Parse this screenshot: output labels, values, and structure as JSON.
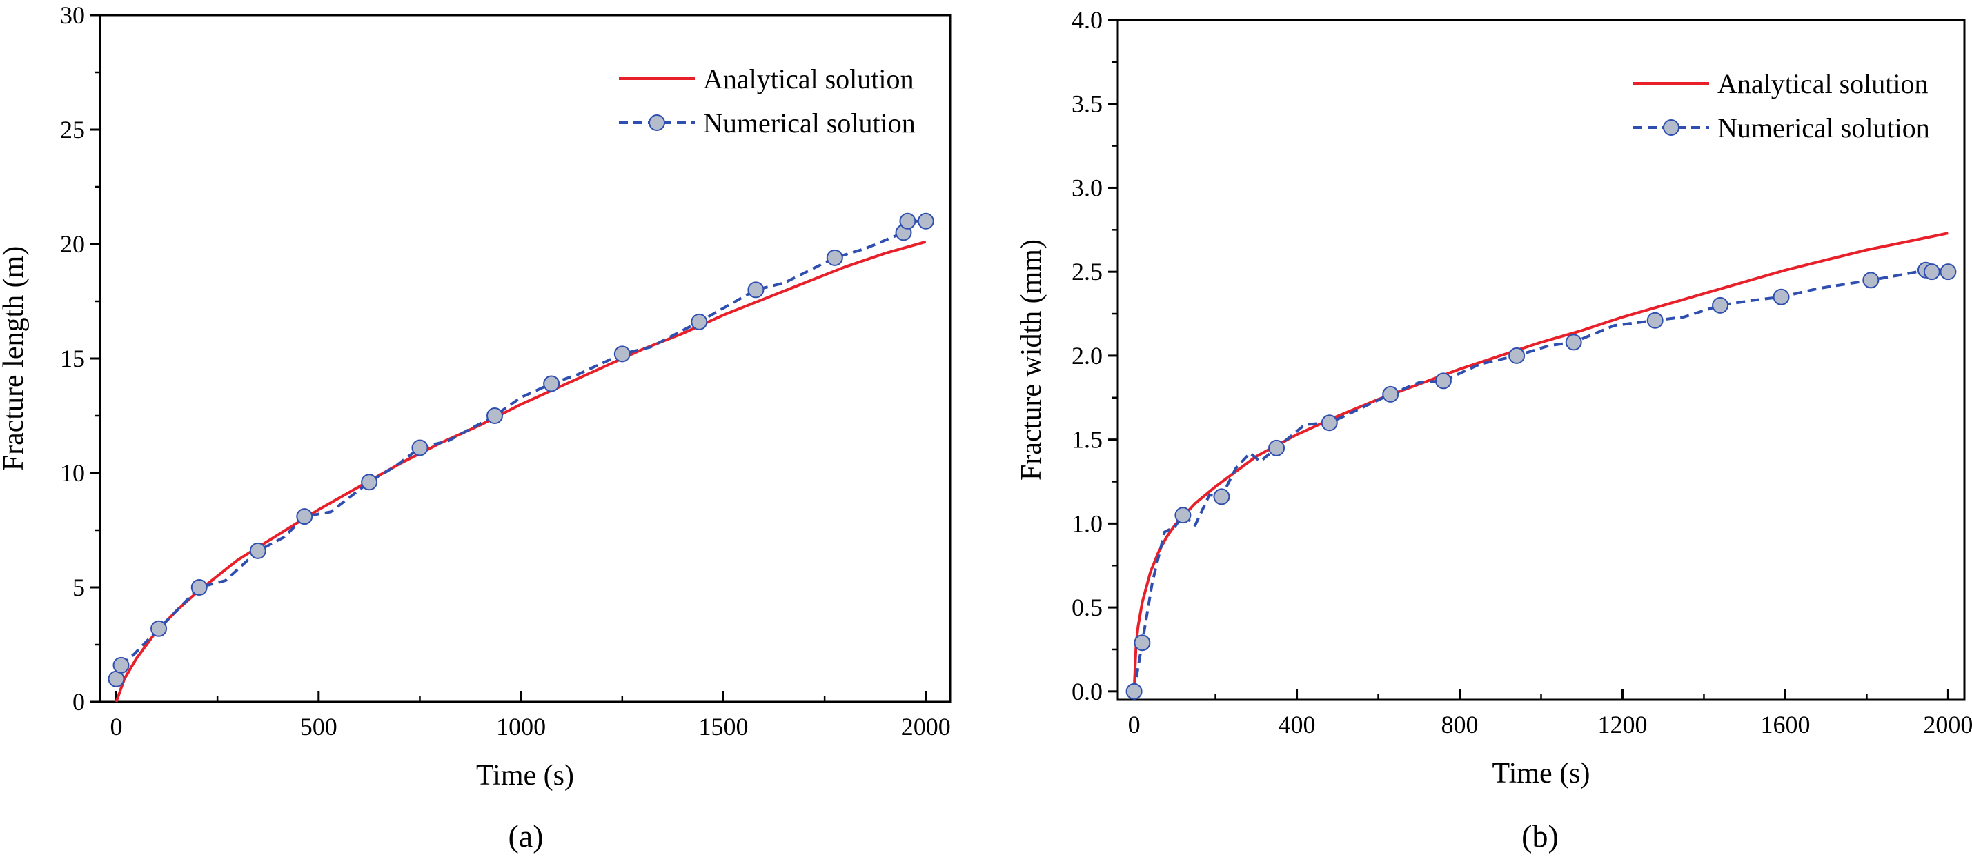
{
  "colors": {
    "analytical": "#e8202a",
    "numerical_line": "#2f4fb0",
    "marker_fill": "#b4bccc",
    "marker_stroke": "#2f4fb0",
    "axis": "#000000"
  },
  "chart_data": [
    {
      "id": "a",
      "type": "line",
      "caption": "(a)",
      "xlabel": "Time (s)",
      "ylabel": "Fracture length (m)",
      "xlim": [
        -40,
        2060
      ],
      "ylim": [
        0,
        30
      ],
      "xticks": [
        0,
        500,
        1000,
        1500,
        2000
      ],
      "xtick_labels": [
        "0",
        "500",
        "1000",
        "1500",
        "2000"
      ],
      "xminor": [
        250,
        750,
        1250,
        1750
      ],
      "yticks": [
        0,
        5,
        10,
        15,
        20,
        25,
        30
      ],
      "ytick_labels": [
        "0",
        "5",
        "10",
        "15",
        "20",
        "25",
        "30"
      ],
      "legend_position": "top-right",
      "series": [
        {
          "name": "Analytical solution",
          "style": "solid",
          "x": [
            0,
            20,
            50,
            100,
            150,
            200,
            300,
            400,
            500,
            600,
            700,
            800,
            900,
            1000,
            1100,
            1200,
            1300,
            1400,
            1500,
            1600,
            1700,
            1800,
            1900,
            2000
          ],
          "y": [
            0,
            1.0,
            1.9,
            3.1,
            4.0,
            4.8,
            6.2,
            7.3,
            8.4,
            9.4,
            10.4,
            11.3,
            12.1,
            13.0,
            13.8,
            14.6,
            15.4,
            16.1,
            16.9,
            17.6,
            18.3,
            19.0,
            19.6,
            20.1
          ]
        },
        {
          "name": "Numerical solution",
          "style": "dashed",
          "marker": "circle",
          "x": [
            0,
            12,
            45,
            105,
            150,
            205,
            270,
            350,
            415,
            465,
            530,
            625,
            690,
            750,
            820,
            935,
            1000,
            1075,
            1140,
            1250,
            1320,
            1440,
            1510,
            1580,
            1650,
            1775,
            1850,
            1945,
            1955,
            2000
          ],
          "y": [
            1.0,
            1.6,
            2.1,
            3.2,
            4.0,
            5.0,
            5.3,
            6.6,
            7.2,
            8.1,
            8.3,
            9.6,
            10.3,
            11.1,
            11.4,
            12.5,
            13.3,
            13.9,
            14.3,
            15.2,
            15.5,
            16.6,
            17.3,
            18.0,
            18.3,
            19.4,
            19.8,
            20.5,
            21.0,
            21.0
          ],
          "markers": [
            0,
            1,
            3,
            5,
            7,
            9,
            11,
            13,
            15,
            17,
            19,
            21,
            23,
            25,
            27,
            28,
            29
          ]
        }
      ]
    },
    {
      "id": "b",
      "type": "line",
      "caption": "(b)",
      "xlabel": "Time (s)",
      "ylabel": "Fracture width (mm)",
      "xlim": [
        -40,
        2040
      ],
      "ylim": [
        -0.05,
        4.0
      ],
      "xticks": [
        0,
        400,
        800,
        1200,
        1600,
        2000
      ],
      "xtick_labels": [
        "0",
        "400",
        "800",
        "1200",
        "1600",
        "2000"
      ],
      "xminor": [
        200,
        600,
        1000,
        1400,
        1800
      ],
      "yticks": [
        0.0,
        0.5,
        1.0,
        1.5,
        2.0,
        2.5,
        3.0,
        3.5,
        4.0
      ],
      "ytick_labels": [
        "0.0",
        "0.5",
        "1.0",
        "1.5",
        "2.0",
        "2.5",
        "3.0",
        "3.5",
        "4.0"
      ],
      "legend_position": "top-right",
      "series": [
        {
          "name": "Analytical solution",
          "style": "solid",
          "x": [
            0,
            5,
            10,
            20,
            40,
            60,
            80,
            100,
            150,
            200,
            300,
            400,
            500,
            600,
            700,
            800,
            900,
            1000,
            1100,
            1200,
            1300,
            1400,
            1500,
            1600,
            1700,
            1800,
            1900,
            2000
          ],
          "y": [
            0,
            0.28,
            0.39,
            0.53,
            0.71,
            0.83,
            0.92,
            0.99,
            1.12,
            1.22,
            1.4,
            1.53,
            1.64,
            1.74,
            1.83,
            1.92,
            2.0,
            2.08,
            2.15,
            2.23,
            2.3,
            2.37,
            2.44,
            2.51,
            2.57,
            2.63,
            2.68,
            2.73
          ]
        },
        {
          "name": "Numerical solution",
          "style": "dashed",
          "marker": "circle",
          "x": [
            0,
            20,
            45,
            75,
            100,
            120,
            150,
            185,
            215,
            250,
            285,
            310,
            350,
            420,
            480,
            560,
            630,
            700,
            760,
            850,
            940,
            1020,
            1080,
            1180,
            1280,
            1350,
            1440,
            1520,
            1590,
            1680,
            1810,
            1880,
            1945,
            1960,
            2000
          ],
          "y": [
            0,
            0.29,
            0.65,
            0.95,
            0.98,
            1.05,
            0.99,
            1.17,
            1.16,
            1.33,
            1.42,
            1.37,
            1.45,
            1.59,
            1.6,
            1.69,
            1.77,
            1.84,
            1.85,
            1.95,
            2.0,
            2.06,
            2.08,
            2.18,
            2.21,
            2.23,
            2.3,
            2.33,
            2.35,
            2.4,
            2.45,
            2.48,
            2.51,
            2.5,
            2.5
          ],
          "markers": [
            0,
            1,
            5,
            8,
            12,
            14,
            16,
            18,
            20,
            22,
            24,
            26,
            28,
            30,
            32,
            33,
            34
          ]
        }
      ]
    }
  ]
}
